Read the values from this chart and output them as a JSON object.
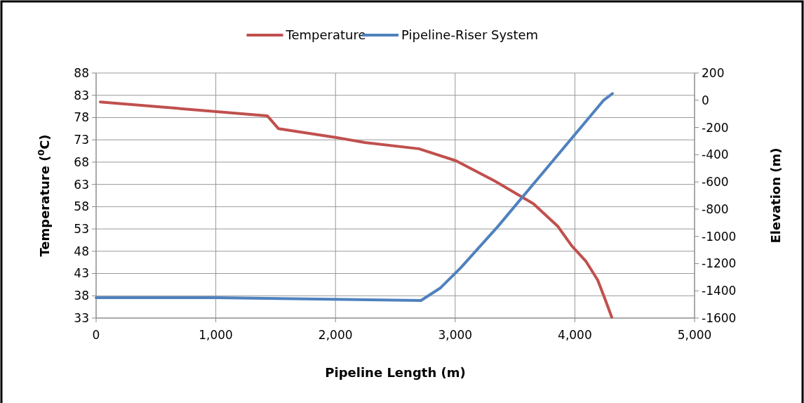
{
  "chart_data": {
    "type": "line",
    "xlabel": "Pipeline Length (m)",
    "ylabel": "Temperature ($^{0}$C)",
    "y2label": "Elevation (m)",
    "xlim": [
      0,
      5000
    ],
    "xticks": [
      0,
      {
        "value": 1000,
        "label": "1,000"
      },
      {
        "value": 2000,
        "label": "2,000"
      },
      {
        "value": 3000,
        "label": "3,000"
      },
      {
        "value": 4000,
        "label": "4,000"
      },
      {
        "value": 5000,
        "label": "5,000"
      }
    ],
    "ylim": [
      33,
      88
    ],
    "yticks": [
      33,
      38,
      43,
      48,
      53,
      58,
      63,
      68,
      73,
      78,
      83,
      88
    ],
    "y2lim": [
      -1600,
      200
    ],
    "y2ticks": [
      -1600,
      -1400,
      -1200,
      -1000,
      -800,
      -600,
      -400,
      -200,
      0,
      200
    ],
    "grid": true,
    "legend": "top",
    "line_style": "solid",
    "marker": "none",
    "series": [
      {
        "name": "Temperature",
        "color": "#c0504d",
        "x": [
          35,
          1430,
          1524,
          2010,
          2245,
          2697,
          3007,
          3335,
          3652,
          3857,
          3974,
          4091,
          4191,
          4250,
          4308
        ],
        "values": [
          81.5,
          78.4,
          75.5,
          73.5,
          72.4,
          71.0,
          68.3,
          63.7,
          58.7,
          53.6,
          49.2,
          45.8,
          41.5,
          37.4,
          33.2
        ]
      },
      {
        "name": "Pipeline-Riser System",
        "color": "#4f81bd",
        "axis": "y2",
        "x": [
          0,
          1000,
          2714,
          2878,
          3048,
          3359,
          4238,
          4314
        ],
        "values": [
          -1450,
          -1450,
          -1471,
          -1378,
          -1229,
          -925,
          -2,
          49
        ]
      }
    ]
  }
}
